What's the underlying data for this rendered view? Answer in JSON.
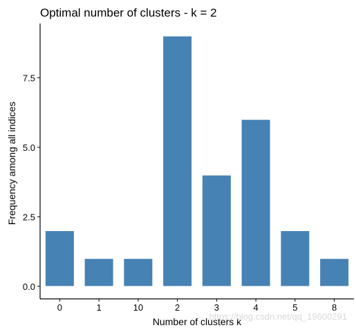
{
  "chart_data": {
    "type": "bar",
    "title": "Optimal number of clusters - k = 2",
    "xlabel": "Number of clusters k",
    "ylabel": "Frequency among all indices",
    "categories": [
      "0",
      "1",
      "10",
      "2",
      "3",
      "4",
      "5",
      "8"
    ],
    "values": [
      2,
      1,
      1,
      9,
      4,
      6,
      2,
      1
    ],
    "ylim": [
      -0.45,
      9.45
    ],
    "yticks": [
      0.0,
      2.5,
      5.0,
      7.5
    ],
    "ytick_labels": [
      "0.0",
      "2.5",
      "5.0",
      "7.5"
    ],
    "bar_color": "#4682B4",
    "bar_edge_color": "#ffffff",
    "grid": false,
    "legend": "none"
  },
  "watermark": "https://blog.csdn.net/qq_19600291"
}
